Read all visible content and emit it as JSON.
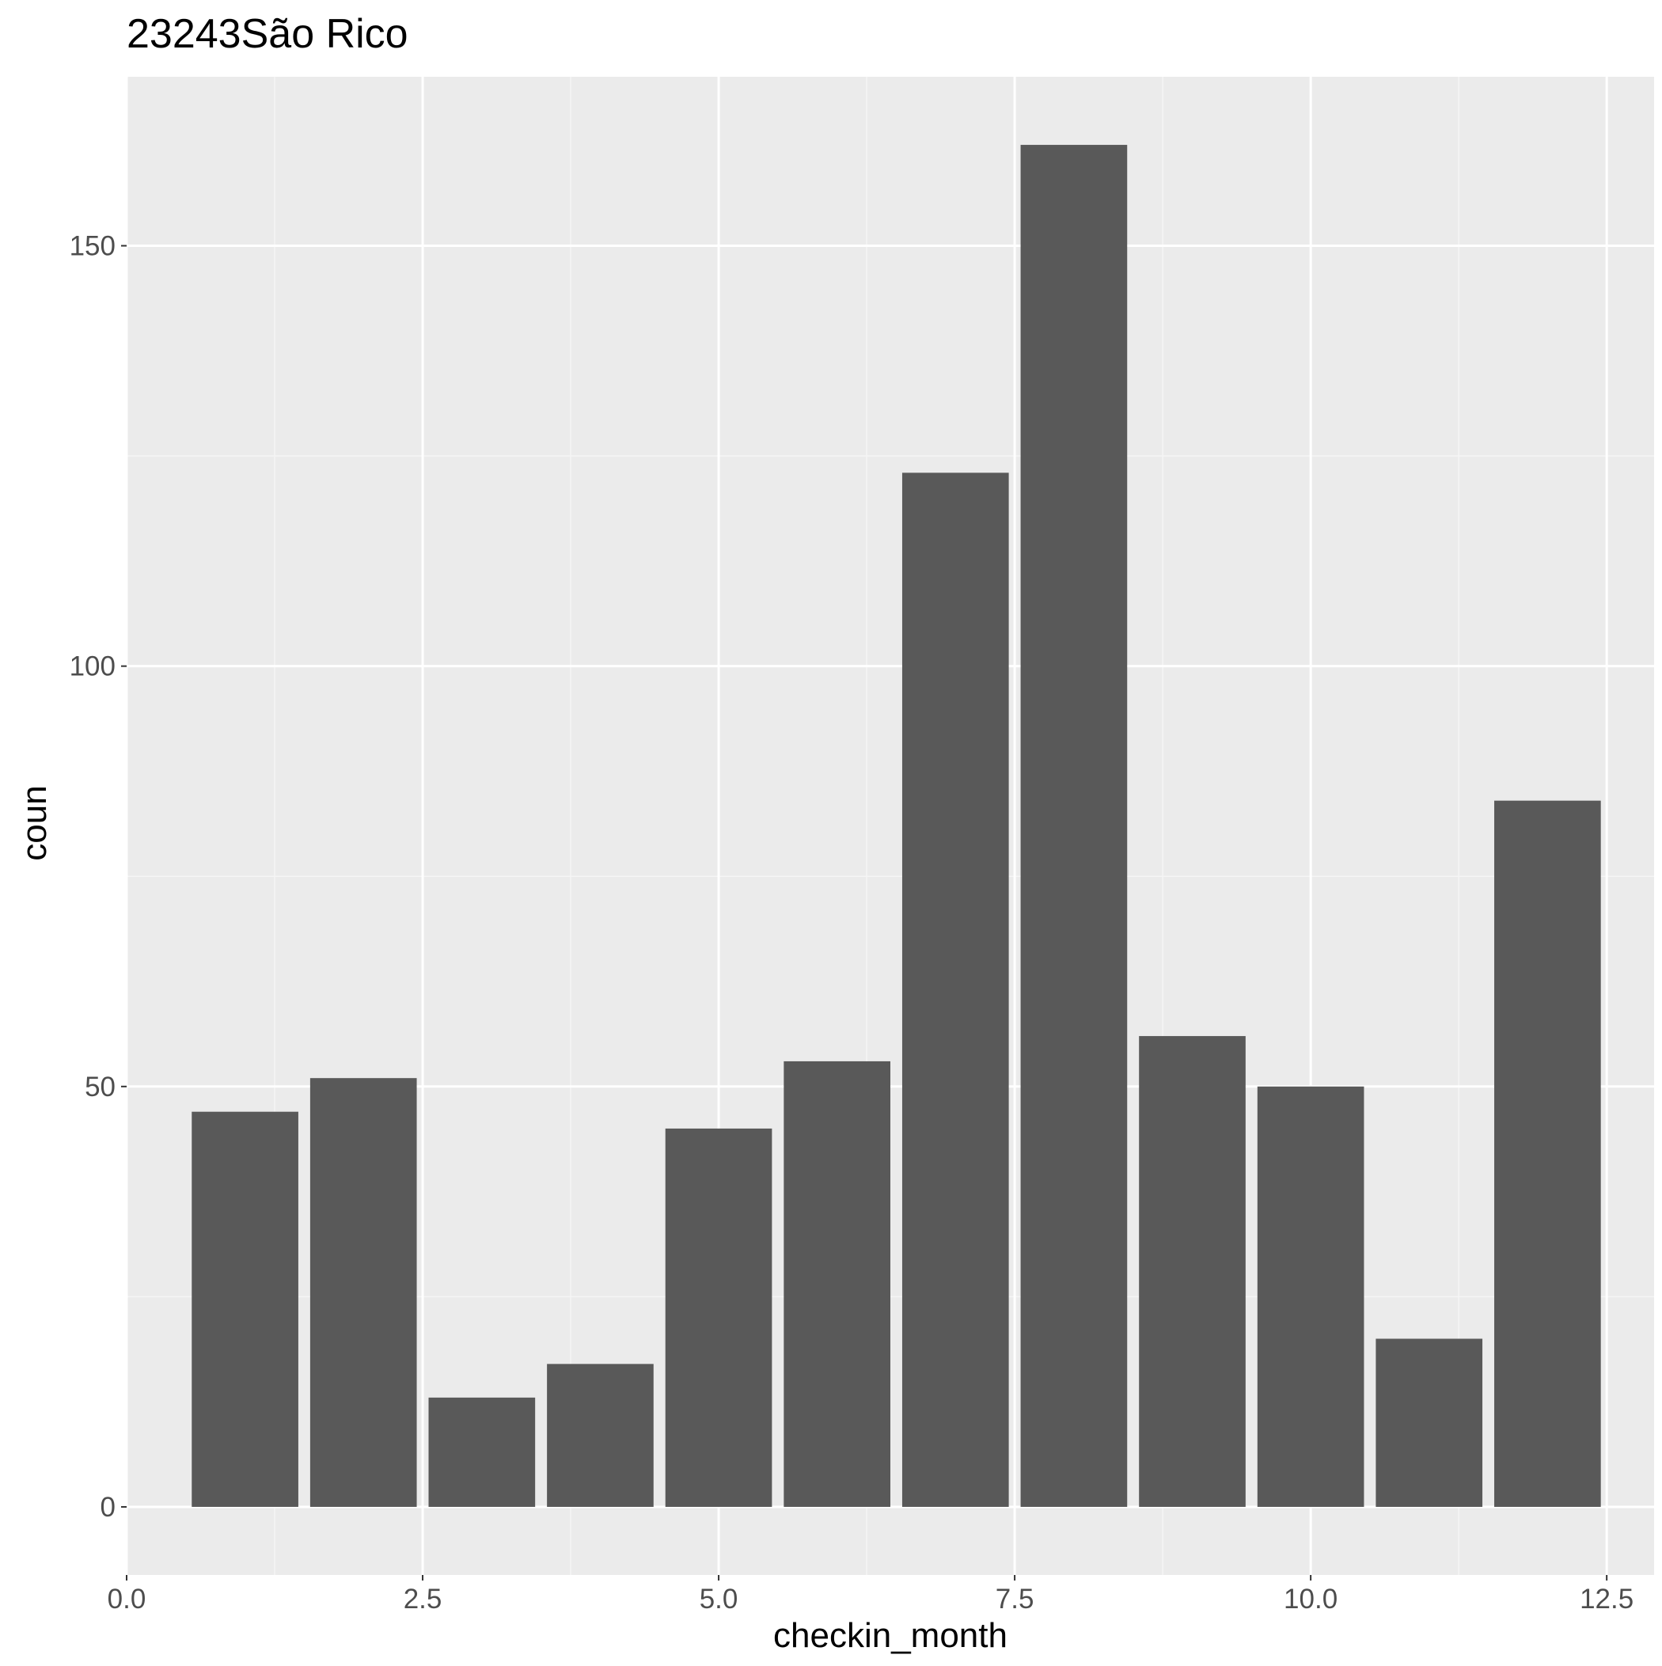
{
  "chart_data": {
    "type": "bar",
    "title": "23243São Rico",
    "xlabel": "checkin_month",
    "ylabel": "coun",
    "x": [
      1,
      2,
      3,
      4,
      5,
      6,
      7,
      8,
      9,
      10,
      11,
      12
    ],
    "values": [
      47,
      51,
      13,
      17,
      45,
      53,
      123,
      162,
      56,
      50,
      20,
      84
    ],
    "xlim": [
      0.0,
      12.9
    ],
    "ylim": [
      -8.1,
      170.1
    ],
    "x_ticks": [
      "0.0",
      "2.5",
      "5.0",
      "7.5",
      "10.0",
      "12.5"
    ],
    "x_tick_values": [
      0,
      2.5,
      5,
      7.5,
      10,
      12.5
    ],
    "y_ticks": [
      "0",
      "50",
      "100",
      "150"
    ],
    "y_tick_values": [
      0,
      50,
      100,
      150
    ],
    "bar_width": 0.9,
    "grid": true,
    "legend": "none",
    "colors": {
      "panel_background": "#ebebeb",
      "grid_major": "#ffffff",
      "grid_minor": "#f5f5f5",
      "bar_fill": "#595959",
      "tick_text": "#4d4d4d",
      "tick_mark": "#333333",
      "title_text": "#000000"
    }
  }
}
